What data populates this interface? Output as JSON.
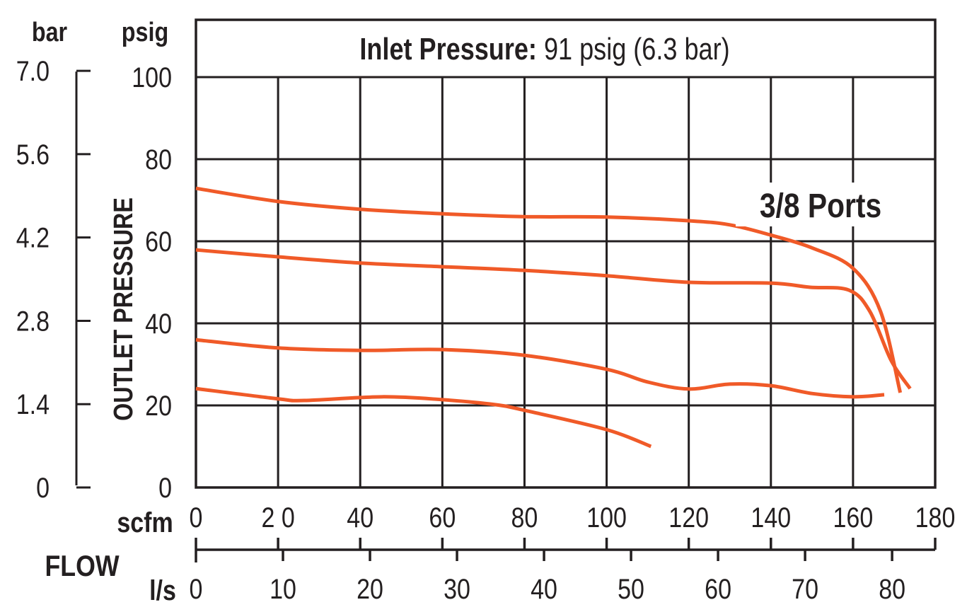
{
  "chart_data": {
    "type": "line",
    "title_bold": "Inlet Pressure:",
    "title_rest": " 91 psig (6.3 bar)",
    "annotation": "3/8 Ports",
    "ylabel": "OUTLET PRESSURE",
    "y_unit_primary": "psig",
    "y_unit_secondary": "bar",
    "xlabel": "FLOW",
    "x_unit_primary": "scfm",
    "x_unit_secondary": "l/s",
    "xlim": [
      0,
      180
    ],
    "ylim": [
      0,
      100
    ],
    "grid": true,
    "line_color": "#f05a28",
    "x_ticks": [
      0,
      20,
      40,
      60,
      80,
      100,
      120,
      140,
      160,
      180
    ],
    "x_tick_labels": [
      "0",
      "2 0",
      "40",
      "60",
      "80",
      "100",
      "120",
      "140",
      "160",
      "180"
    ],
    "y_ticks": [
      0,
      20,
      40,
      60,
      80,
      100
    ],
    "y_tick_labels": [
      "0",
      "20",
      "40",
      "60",
      "80",
      "100"
    ],
    "bar_ticks": [
      0,
      1.4,
      2.8,
      4.2,
      5.6,
      7.0
    ],
    "bar_tick_labels": [
      "0",
      "1.4",
      "2.8",
      "4.2",
      "5.6",
      "7.0"
    ],
    "ls_ticks": [
      0,
      10,
      20,
      30,
      40,
      50,
      60,
      70,
      80
    ],
    "ls_tick_labels": [
      "0",
      "10",
      "20",
      "30",
      "40",
      "50",
      "60",
      "70",
      "80"
    ],
    "series": [
      {
        "x": [
          0,
          20,
          40,
          60,
          80,
          100,
          120,
          130,
          140,
          150,
          160,
          166.7,
          171.5
        ],
        "y": [
          72.9,
          69.7,
          67.8,
          66.7,
          66,
          65.9,
          65,
          64,
          61.5,
          58.4,
          53.4,
          42.9,
          23.1
        ]
      },
      {
        "x": [
          0,
          20,
          40,
          60,
          80,
          100,
          120,
          140,
          149.5,
          159,
          164.1,
          169.3,
          173.9
        ],
        "y": [
          57.9,
          56.2,
          54.7,
          53.8,
          52.9,
          51.6,
          50,
          49.8,
          48.8,
          48.1,
          42.9,
          30.9,
          24.1
        ]
      },
      {
        "x": [
          0,
          20,
          40,
          60,
          80,
          100,
          110,
          120,
          130,
          140,
          150,
          160,
          167.6
        ],
        "y": [
          36,
          34,
          33.4,
          33.6,
          32.2,
          28.8,
          25.7,
          24,
          25.2,
          24.8,
          22.9,
          22.1,
          22.6
        ]
      },
      {
        "x": [
          0,
          20,
          26.4,
          45.3,
          60,
          72.8,
          80,
          100,
          110.8
        ],
        "y": [
          24.1,
          21.6,
          21.2,
          22.1,
          21.4,
          20.2,
          18.8,
          14.1,
          10
        ]
      }
    ]
  }
}
